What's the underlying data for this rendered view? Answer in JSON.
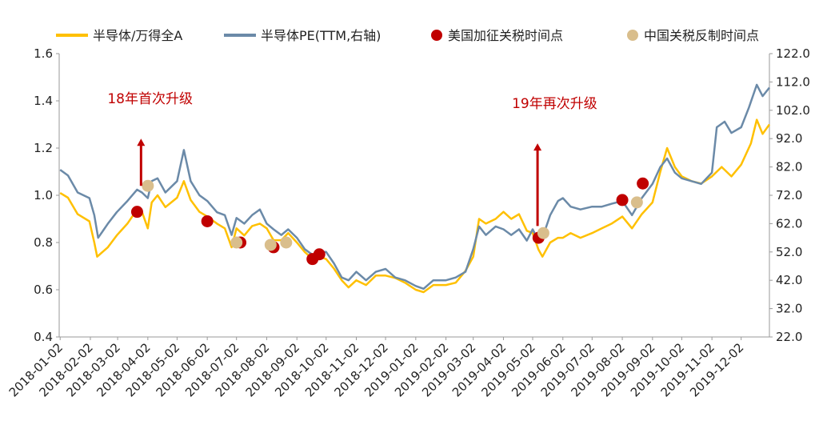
{
  "chart_data": {
    "type": "line",
    "series": [
      {
        "name": "半导体/万得全A",
        "axis": "left",
        "color": "#ffc000",
        "points": [
          [
            "2018-01-02",
            1.01
          ],
          [
            "2018-01-10",
            0.99
          ],
          [
            "2018-01-20",
            0.92
          ],
          [
            "2018-02-01",
            0.89
          ],
          [
            "2018-02-06",
            0.8
          ],
          [
            "2018-02-09",
            0.74
          ],
          [
            "2018-02-20",
            0.78
          ],
          [
            "2018-03-01",
            0.83
          ],
          [
            "2018-03-12",
            0.88
          ],
          [
            "2018-03-22",
            0.94
          ],
          [
            "2018-03-27",
            0.93
          ],
          [
            "2018-04-02",
            0.86
          ],
          [
            "2018-04-06",
            0.97
          ],
          [
            "2018-04-12",
            1.0
          ],
          [
            "2018-04-20",
            0.95
          ],
          [
            "2018-05-02",
            0.99
          ],
          [
            "2018-05-09",
            1.06
          ],
          [
            "2018-05-16",
            0.98
          ],
          [
            "2018-05-25",
            0.93
          ],
          [
            "2018-06-02",
            0.91
          ],
          [
            "2018-06-12",
            0.88
          ],
          [
            "2018-06-20",
            0.86
          ],
          [
            "2018-06-27",
            0.78
          ],
          [
            "2018-07-02",
            0.86
          ],
          [
            "2018-07-10",
            0.83
          ],
          [
            "2018-07-18",
            0.87
          ],
          [
            "2018-07-26",
            0.88
          ],
          [
            "2018-08-02",
            0.86
          ],
          [
            "2018-08-09",
            0.81
          ],
          [
            "2018-08-17",
            0.81
          ],
          [
            "2018-08-24",
            0.84
          ],
          [
            "2018-09-02",
            0.8
          ],
          [
            "2018-09-10",
            0.76
          ],
          [
            "2018-09-18",
            0.73
          ],
          [
            "2018-09-25",
            0.74
          ],
          [
            "2018-10-02",
            0.73
          ],
          [
            "2018-10-10",
            0.69
          ],
          [
            "2018-10-18",
            0.64
          ],
          [
            "2018-10-25",
            0.61
          ],
          [
            "2018-11-02",
            0.64
          ],
          [
            "2018-11-12",
            0.62
          ],
          [
            "2018-11-22",
            0.66
          ],
          [
            "2018-12-02",
            0.66
          ],
          [
            "2018-12-12",
            0.65
          ],
          [
            "2018-12-22",
            0.63
          ],
          [
            "2019-01-02",
            0.6
          ],
          [
            "2019-01-10",
            0.59
          ],
          [
            "2019-01-20",
            0.62
          ],
          [
            "2019-02-02",
            0.62
          ],
          [
            "2019-02-12",
            0.63
          ],
          [
            "2019-02-22",
            0.68
          ],
          [
            "2019-03-02",
            0.74
          ],
          [
            "2019-03-08",
            0.9
          ],
          [
            "2019-03-15",
            0.88
          ],
          [
            "2019-03-25",
            0.9
          ],
          [
            "2019-04-02",
            0.93
          ],
          [
            "2019-04-10",
            0.9
          ],
          [
            "2019-04-18",
            0.92
          ],
          [
            "2019-04-26",
            0.85
          ],
          [
            "2019-05-02",
            0.84
          ],
          [
            "2019-05-08",
            0.77
          ],
          [
            "2019-05-12",
            0.74
          ],
          [
            "2019-05-20",
            0.8
          ],
          [
            "2019-05-28",
            0.82
          ],
          [
            "2019-06-02",
            0.82
          ],
          [
            "2019-06-10",
            0.84
          ],
          [
            "2019-06-20",
            0.82
          ],
          [
            "2019-07-02",
            0.84
          ],
          [
            "2019-07-12",
            0.86
          ],
          [
            "2019-07-22",
            0.88
          ],
          [
            "2019-08-02",
            0.91
          ],
          [
            "2019-08-12",
            0.86
          ],
          [
            "2019-08-22",
            0.92
          ],
          [
            "2019-09-02",
            0.97
          ],
          [
            "2019-09-10",
            1.1
          ],
          [
            "2019-09-17",
            1.2
          ],
          [
            "2019-09-25",
            1.12
          ],
          [
            "2019-10-02",
            1.08
          ],
          [
            "2019-10-12",
            1.06
          ],
          [
            "2019-10-22",
            1.05
          ],
          [
            "2019-11-02",
            1.08
          ],
          [
            "2019-11-12",
            1.12
          ],
          [
            "2019-11-22",
            1.08
          ],
          [
            "2019-12-02",
            1.13
          ],
          [
            "2019-12-12",
            1.22
          ],
          [
            "2019-12-18",
            1.32
          ],
          [
            "2019-12-24",
            1.26
          ],
          [
            "2019-12-31",
            1.3
          ]
        ]
      },
      {
        "name": "半导体PE(TTM,右轴)",
        "axis": "right",
        "color": "#6b8aa8",
        "points": [
          [
            "2018-01-02",
            81.0
          ],
          [
            "2018-01-10",
            79.0
          ],
          [
            "2018-01-20",
            73.0
          ],
          [
            "2018-02-01",
            71.0
          ],
          [
            "2018-02-06",
            65.0
          ],
          [
            "2018-02-10",
            57.0
          ],
          [
            "2018-02-20",
            62.0
          ],
          [
            "2018-03-01",
            66.0
          ],
          [
            "2018-03-12",
            70.0
          ],
          [
            "2018-03-22",
            74.0
          ],
          [
            "2018-03-27",
            73.0
          ],
          [
            "2018-04-02",
            71.0
          ],
          [
            "2018-04-06",
            77.0
          ],
          [
            "2018-04-12",
            78.0
          ],
          [
            "2018-04-20",
            73.0
          ],
          [
            "2018-05-02",
            77.0
          ],
          [
            "2018-05-09",
            88.0
          ],
          [
            "2018-05-16",
            77.0
          ],
          [
            "2018-05-25",
            72.0
          ],
          [
            "2018-06-02",
            70.0
          ],
          [
            "2018-06-12",
            66.0
          ],
          [
            "2018-06-20",
            65.0
          ],
          [
            "2018-06-27",
            58.0
          ],
          [
            "2018-07-02",
            64.0
          ],
          [
            "2018-07-10",
            62.0
          ],
          [
            "2018-07-18",
            65.0
          ],
          [
            "2018-07-26",
            67.0
          ],
          [
            "2018-08-02",
            62.0
          ],
          [
            "2018-08-09",
            60.0
          ],
          [
            "2018-08-17",
            58.0
          ],
          [
            "2018-08-24",
            60.0
          ],
          [
            "2018-09-02",
            57.0
          ],
          [
            "2018-09-10",
            53.0
          ],
          [
            "2018-09-18",
            51.0
          ],
          [
            "2018-09-25",
            52.0
          ],
          [
            "2018-10-02",
            52.0
          ],
          [
            "2018-10-10",
            48.0
          ],
          [
            "2018-10-18",
            43.0
          ],
          [
            "2018-10-25",
            42.0
          ],
          [
            "2018-11-02",
            45.0
          ],
          [
            "2018-11-12",
            42.0
          ],
          [
            "2018-11-22",
            45.0
          ],
          [
            "2018-12-02",
            46.0
          ],
          [
            "2018-12-12",
            43.0
          ],
          [
            "2018-12-22",
            42.0
          ],
          [
            "2019-01-02",
            40.0
          ],
          [
            "2019-01-10",
            39.0
          ],
          [
            "2019-01-20",
            42.0
          ],
          [
            "2019-02-02",
            42.0
          ],
          [
            "2019-02-12",
            43.0
          ],
          [
            "2019-02-22",
            45.0
          ],
          [
            "2019-03-02",
            53.0
          ],
          [
            "2019-03-08",
            61.0
          ],
          [
            "2019-03-15",
            58.0
          ],
          [
            "2019-03-25",
            61.0
          ],
          [
            "2019-04-02",
            60.0
          ],
          [
            "2019-04-10",
            58.0
          ],
          [
            "2019-04-18",
            60.0
          ],
          [
            "2019-04-26",
            56.0
          ],
          [
            "2019-05-02",
            60.0
          ],
          [
            "2019-05-08",
            56.0
          ],
          [
            "2019-05-12",
            57.0
          ],
          [
            "2019-05-20",
            65.0
          ],
          [
            "2019-05-28",
            70.0
          ],
          [
            "2019-06-02",
            71.0
          ],
          [
            "2019-06-10",
            68.0
          ],
          [
            "2019-06-20",
            67.0
          ],
          [
            "2019-07-02",
            68.0
          ],
          [
            "2019-07-12",
            68.0
          ],
          [
            "2019-07-22",
            69.0
          ],
          [
            "2019-08-02",
            70.0
          ],
          [
            "2019-08-12",
            65.0
          ],
          [
            "2019-08-22",
            71.0
          ],
          [
            "2019-09-02",
            76.0
          ],
          [
            "2019-09-10",
            82.0
          ],
          [
            "2019-09-17",
            85.0
          ],
          [
            "2019-09-25",
            80.0
          ],
          [
            "2019-10-02",
            78.0
          ],
          [
            "2019-10-12",
            77.0
          ],
          [
            "2019-10-22",
            76.0
          ],
          [
            "2019-11-02",
            80.0
          ],
          [
            "2019-11-07",
            96.0
          ],
          [
            "2019-11-15",
            98.0
          ],
          [
            "2019-11-22",
            94.0
          ],
          [
            "2019-12-02",
            96.0
          ],
          [
            "2019-12-10",
            103.0
          ],
          [
            "2019-12-18",
            111.0
          ],
          [
            "2019-12-24",
            107.0
          ],
          [
            "2019-12-31",
            110.0
          ]
        ]
      }
    ],
    "markers": [
      {
        "name": "美国加征关税时间点",
        "color": "#c00000",
        "points": [
          [
            "2018-03-22",
            0.93
          ],
          [
            "2018-06-02",
            0.89
          ],
          [
            "2018-07-06",
            0.8
          ],
          [
            "2018-08-09",
            0.78
          ],
          [
            "2018-09-18",
            0.73
          ],
          [
            "2018-09-25",
            0.75
          ],
          [
            "2019-05-08",
            0.82
          ],
          [
            "2019-08-02",
            0.98
          ],
          [
            "2019-08-23",
            1.05
          ]
        ]
      },
      {
        "name": "中国关税反制时间点",
        "color": "#d9be8c",
        "points": [
          [
            "2018-04-02",
            1.04
          ],
          [
            "2018-07-02",
            0.8
          ],
          [
            "2018-08-06",
            0.79
          ],
          [
            "2018-08-22",
            0.8
          ],
          [
            "2019-05-13",
            0.84
          ],
          [
            "2019-08-17",
            0.97
          ]
        ]
      }
    ],
    "annotations": [
      {
        "text": "18年首次升级",
        "arrow_date": "2018-03-26",
        "arrow_from": 1.04,
        "arrow_to": 1.24,
        "color": "#c00000"
      },
      {
        "text": "19年再次升级",
        "arrow_date": "2019-05-07",
        "arrow_from": 0.87,
        "arrow_to": 1.22,
        "color": "#c00000"
      }
    ],
    "x_axis": {
      "start": "2018-01-01",
      "end": "2019-12-31",
      "tick_labels": [
        "2018-01-02",
        "2018-02-02",
        "2018-03-02",
        "2018-04-02",
        "2018-05-02",
        "2018-06-02",
        "2018-07-02",
        "2018-08-02",
        "2018-09-02",
        "2018-10-02",
        "2018-11-02",
        "2018-12-02",
        "2019-01-02",
        "2019-02-02",
        "2019-03-02",
        "2019-04-02",
        "2019-05-02",
        "2019-06-02",
        "2019-07-02",
        "2019-08-02",
        "2019-09-02",
        "2019-10-02",
        "2019-11-02",
        "2019-12-02"
      ]
    },
    "y_left": {
      "min": 0.4,
      "max": 1.6,
      "ticks": [
        "0.4",
        "0.6",
        "0.8",
        "1.0",
        "1.2",
        "1.4",
        "1.6"
      ]
    },
    "y_right": {
      "min": 22.0,
      "max": 122.0,
      "ticks": [
        "22.0",
        "32.0",
        "42.0",
        "52.0",
        "62.0",
        "72.0",
        "82.0",
        "92.0",
        "102.0",
        "112.0",
        "122.0"
      ]
    },
    "legend_position": "top",
    "grid": false
  }
}
